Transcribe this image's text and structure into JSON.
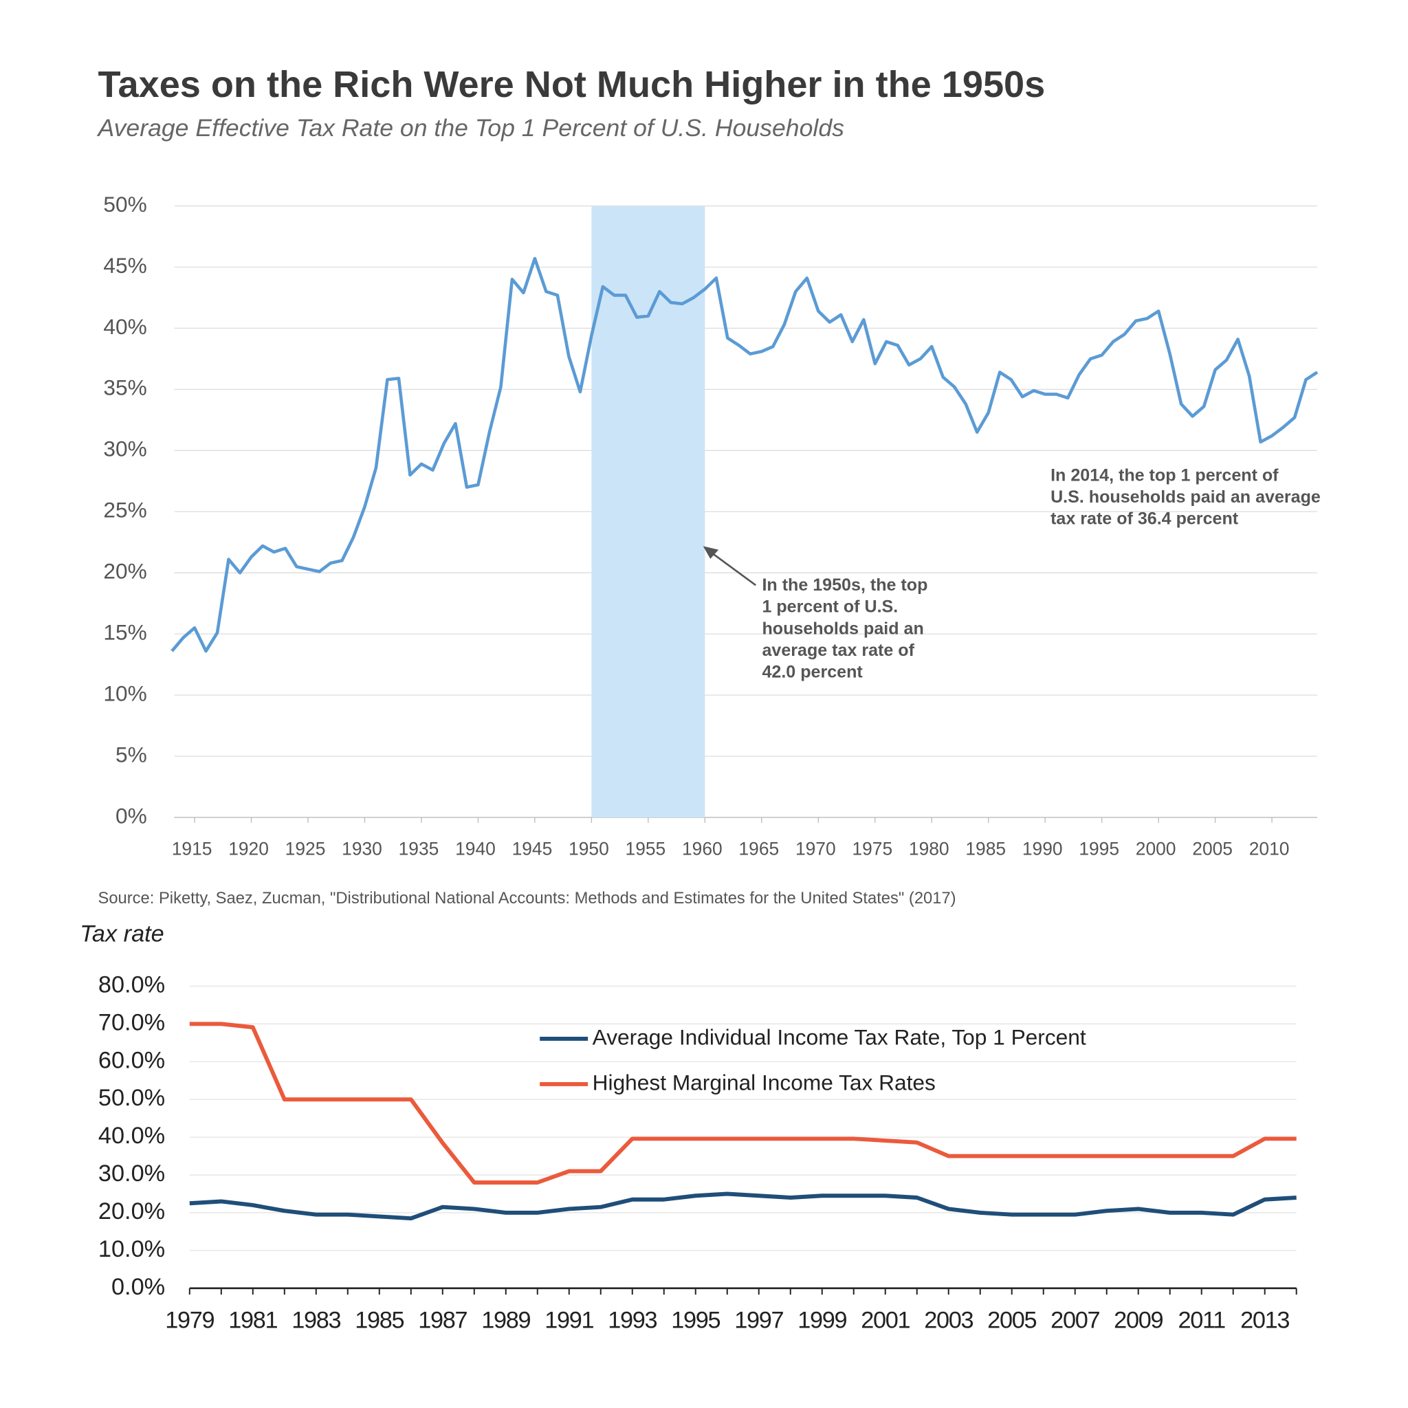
{
  "chart_data": [
    {
      "type": "line",
      "title": "Taxes on the Rich Were Not Much Higher in the 1950s",
      "subtitle": "Average  Effective Tax Rate on the Top 1 Percent of U.S. Households",
      "source": "Source: Piketty, Saez, Zucman, \"Distributional National Accounts: Methods and Estimates for the United States\" (2017)",
      "x": [
        1913,
        1914,
        1915,
        1916,
        1917,
        1918,
        1919,
        1920,
        1921,
        1922,
        1923,
        1924,
        1925,
        1926,
        1927,
        1928,
        1929,
        1930,
        1931,
        1932,
        1933,
        1934,
        1935,
        1936,
        1937,
        1938,
        1939,
        1940,
        1941,
        1942,
        1943,
        1944,
        1945,
        1946,
        1947,
        1948,
        1949,
        1950,
        1951,
        1952,
        1953,
        1954,
        1955,
        1956,
        1957,
        1958,
        1959,
        1960,
        1961,
        1962,
        1963,
        1964,
        1965,
        1966,
        1967,
        1968,
        1969,
        1970,
        1971,
        1972,
        1973,
        1974,
        1975,
        1976,
        1977,
        1978,
        1979,
        1980,
        1981,
        1982,
        1983,
        1984,
        1985,
        1986,
        1987,
        1988,
        1989,
        1990,
        1991,
        1992,
        1993,
        1994,
        1995,
        1996,
        1997,
        1998,
        1999,
        2000,
        2001,
        2002,
        2003,
        2004,
        2005,
        2006,
        2007,
        2008,
        2009,
        2010,
        2011,
        2012,
        2013,
        2014
      ],
      "series": [
        {
          "color": "#5b9bd5",
          "values": [
            13.6,
            14.7,
            15.5,
            13.6,
            15.1,
            21.1,
            20.0,
            21.3,
            22.2,
            21.7,
            22.0,
            20.5,
            20.3,
            20.1,
            20.8,
            21.0,
            22.9,
            25.4,
            28.6,
            35.8,
            35.9,
            28.0,
            28.9,
            28.4,
            30.6,
            32.2,
            27.0,
            27.2,
            31.5,
            35.2,
            44.0,
            42.9,
            45.7,
            43.0,
            42.7,
            37.7,
            34.8,
            39.4,
            43.4,
            42.7,
            42.7,
            40.9,
            41.0,
            43.0,
            42.1,
            42.0,
            42.5,
            43.2,
            44.1,
            39.2,
            38.6,
            37.9,
            38.1,
            38.5,
            40.3,
            43.0,
            44.1,
            41.4,
            40.5,
            41.1,
            38.9,
            40.7,
            37.1,
            38.9,
            38.6,
            37.0,
            37.5,
            38.5,
            36.0,
            35.2,
            33.8,
            31.5,
            33.1,
            36.4,
            35.8,
            34.4,
            34.9,
            34.6,
            34.6,
            34.3,
            36.2,
            37.5,
            37.8,
            38.9,
            39.5,
            40.6,
            40.8,
            41.4,
            37.9,
            33.8,
            32.8,
            33.6,
            36.6,
            37.4,
            39.1,
            36.1,
            30.7,
            31.2,
            31.9,
            32.7,
            35.8,
            36.4
          ]
        }
      ],
      "highlight": {
        "from": 1950,
        "to": 1960,
        "color": "#cce4f7"
      },
      "xlim": [
        1913,
        2014
      ],
      "xticks": [
        1915,
        1920,
        1925,
        1930,
        1935,
        1940,
        1945,
        1950,
        1955,
        1960,
        1965,
        1970,
        1975,
        1980,
        1985,
        1990,
        1995,
        2000,
        2005,
        2010
      ],
      "ylim": [
        0,
        50
      ],
      "yticks": [
        {
          "value": 0,
          "label": "0%"
        },
        {
          "value": 5,
          "label": "5%"
        },
        {
          "value": 10,
          "label": "10%"
        },
        {
          "value": 15,
          "label": "15%"
        },
        {
          "value": 20,
          "label": "20%"
        },
        {
          "value": 25,
          "label": "25%"
        },
        {
          "value": 30,
          "label": "30%"
        },
        {
          "value": 35,
          "label": "35%"
        },
        {
          "value": 40,
          "label": "40%"
        },
        {
          "value": 45,
          "label": "45%"
        },
        {
          "value": 50,
          "label": "50%"
        }
      ],
      "grid": true,
      "annotations": [
        {
          "lines": [
            "In the 1950s, the top",
            "1 percent of U.S.",
            "households paid an",
            "average tax rate of",
            "42.0 percent"
          ]
        },
        {
          "lines": [
            "In 2014, the top 1 percent of",
            "U.S. households paid an average",
            "tax rate of 36.4 percent"
          ]
        }
      ]
    },
    {
      "type": "line",
      "ylabel": "Tax rate",
      "categories": [
        "1979",
        null,
        "1981",
        null,
        "1983",
        null,
        "1985",
        null,
        "1987",
        null,
        "1989",
        null,
        "1991",
        null,
        "1993",
        null,
        "1995",
        null,
        "1997",
        null,
        "1999",
        null,
        "2001",
        null,
        "2003",
        null,
        "2005",
        null,
        "2007",
        null,
        "2009",
        null,
        "2011",
        null,
        "2013",
        null
      ],
      "series": [
        {
          "name": "Average Individual Income Tax Rate, Top 1 Percent",
          "color": "#1f4e79",
          "values": [
            22.5,
            23.0,
            22.0,
            20.5,
            19.5,
            19.5,
            19.0,
            18.5,
            21.5,
            21.0,
            20.0,
            20.0,
            21.0,
            21.5,
            23.5,
            23.5,
            24.5,
            25.0,
            24.5,
            24.0,
            24.5,
            24.5,
            24.5,
            24.0,
            21.0,
            20.0,
            19.5,
            19.5,
            19.5,
            20.5,
            21.0,
            20.0,
            20.0,
            19.5,
            23.5,
            24.0
          ]
        },
        {
          "name": "Highest Marginal Income Tax Rates",
          "color": "#eb5a3c",
          "values": [
            70,
            70,
            69.1,
            50,
            50,
            50,
            50,
            50,
            38.5,
            28,
            28,
            28,
            31,
            31,
            39.6,
            39.6,
            39.6,
            39.6,
            39.6,
            39.6,
            39.6,
            39.6,
            39.1,
            38.6,
            35,
            35,
            35,
            35,
            35,
            35,
            35,
            35,
            35,
            35,
            39.6,
            39.6
          ]
        }
      ],
      "ylim": [
        0,
        80
      ],
      "yticks": [
        {
          "value": 0,
          "label": "0.0%"
        },
        {
          "value": 10,
          "label": "10.0%"
        },
        {
          "value": 20,
          "label": "20.0%"
        },
        {
          "value": 30,
          "label": "30.0%"
        },
        {
          "value": 40,
          "label": "40.0%"
        },
        {
          "value": 50,
          "label": "50.0%"
        },
        {
          "value": 60,
          "label": "60.0%"
        },
        {
          "value": 70,
          "label": "70.0%"
        },
        {
          "value": 80,
          "label": "80.0%"
        }
      ],
      "grid": true
    }
  ]
}
